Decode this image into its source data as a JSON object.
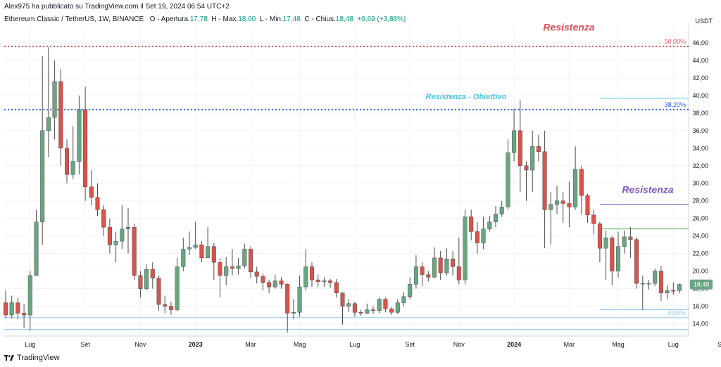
{
  "header": {
    "published_by": "Alex975 ha pubblicato su TradingView.com il Set 19, 2024 06:54 UTC+2",
    "symbol": "Ethereum Classic / TetherUS, 1W, BINANCE",
    "open_label": "O - Apertura",
    "open_value": "17,78",
    "high_label": "H - Max.",
    "high_value": "18,60",
    "low_label": "L - Min.",
    "low_value": "17,48",
    "close_label": "C - Chius.",
    "close_value": "18,48",
    "change": "+0,69 (+3,88%)"
  },
  "unit": "USDT",
  "footer": {
    "brand": "TradingView"
  },
  "colors": {
    "up": "#6aa582",
    "down": "#d9534a",
    "grid": "#f0f3fa",
    "resist_red": "#e0505b",
    "resist_teal": "#4fc3d9",
    "fib_blue": "#2962ff",
    "purple": "#7e57c2",
    "green_line": "#4caf50",
    "lightblue": "#90c8f0"
  },
  "chart_data": {
    "type": "candlestick",
    "y_ticks": [
      "14,00",
      "16,00",
      "18,00",
      "20,00",
      "22,00",
      "24,00",
      "26,00",
      "28,00",
      "30,00",
      "32,00",
      "34,00",
      "36,00",
      "38,00",
      "40,00",
      "42,00",
      "44,00",
      "46,00"
    ],
    "ylim": [
      12.6,
      48.0
    ],
    "x_ticks": [
      "Lug",
      "Set",
      "Nov",
      "2023",
      "Mar",
      "Mag",
      "Lug",
      "Set",
      "Nov",
      "2024",
      "Mar",
      "Mag",
      "Lug",
      "Set"
    ],
    "last_price": "18,48",
    "annotations": [
      {
        "text": "Resistenza",
        "color": "resist_red",
        "y": 47.4
      },
      {
        "text": "Resistenza - Obiettivo",
        "color": "resist_teal",
        "y": 39.6
      },
      {
        "text": "Resistenza",
        "color": "purple",
        "y": 28.9
      }
    ],
    "levels": [
      {
        "label": "50,00%",
        "y": 45.6,
        "style": "dotted",
        "color": "resist_red",
        "full": true
      },
      {
        "label": "38,20%",
        "y": 38.4,
        "style": "dotted",
        "color": "fib_blue",
        "full": true
      },
      {
        "label": "",
        "y": 39.7,
        "style": "solid",
        "color": "resist_teal",
        "full": false
      },
      {
        "label": "",
        "y": 27.6,
        "style": "solid",
        "color": "purple",
        "full": false
      },
      {
        "label": "",
        "y": 24.8,
        "style": "solid",
        "color": "green_line",
        "full": false
      },
      {
        "label": "",
        "y": 15.6,
        "style": "solid",
        "color": "lightblue",
        "full": false
      },
      {
        "label": "0,00%",
        "y": 14.7,
        "style": "solid",
        "color": "lightblue",
        "full": true
      },
      {
        "label": "",
        "y": 13.35,
        "style": "solid",
        "color": "lightblue",
        "full": true
      }
    ],
    "candles": [
      [
        16.4,
        15.0,
        17.8,
        14.6
      ],
      [
        15.0,
        16.4,
        17.2,
        14.6
      ],
      [
        16.4,
        15.2,
        17.0,
        14.5
      ],
      [
        15.2,
        15.0,
        16.2,
        13.5
      ],
      [
        15.0,
        19.5,
        20.0,
        13.2
      ],
      [
        19.5,
        25.6,
        27.0,
        21.0
      ],
      [
        25.6,
        36.0,
        44.5,
        23.0
      ],
      [
        36.0,
        37.5,
        45.5,
        33.0
      ],
      [
        37.5,
        41.6,
        44.0,
        35.0
      ],
      [
        41.6,
        34.0,
        43.0,
        32.0
      ],
      [
        34.0,
        31.0,
        35.0,
        30.0
      ],
      [
        31.0,
        32.5,
        36.5,
        30.5
      ],
      [
        32.5,
        38.4,
        40.0,
        31.0
      ],
      [
        38.4,
        29.6,
        41.0,
        28.0
      ],
      [
        29.6,
        28.4,
        31.5,
        27.5
      ],
      [
        28.4,
        27.0,
        30.0,
        26.3
      ],
      [
        27.0,
        25.0,
        27.5,
        24.0
      ],
      [
        25.0,
        23.0,
        26.0,
        22.0
      ],
      [
        23.0,
        23.4,
        24.5,
        21.0
      ],
      [
        23.4,
        24.8,
        27.5,
        22.5
      ],
      [
        24.8,
        25.0,
        27.2,
        22.0
      ],
      [
        25.0,
        19.5,
        25.4,
        19.0
      ],
      [
        19.5,
        18.0,
        20.0,
        17.0
      ],
      [
        18.0,
        20.2,
        20.8,
        17.8
      ],
      [
        20.2,
        19.2,
        21.0,
        18.0
      ],
      [
        19.2,
        16.2,
        19.5,
        15.5
      ],
      [
        16.2,
        16.0,
        17.2,
        15.2
      ],
      [
        16.0,
        15.6,
        16.5,
        15.0
      ],
      [
        15.6,
        20.5,
        21.5,
        15.4
      ],
      [
        20.5,
        22.5,
        23.8,
        20.0
      ],
      [
        22.5,
        22.7,
        24.5,
        21.8
      ],
      [
        22.7,
        23.0,
        25.6,
        22.5
      ],
      [
        23.0,
        21.5,
        23.4,
        21.0
      ],
      [
        21.5,
        22.8,
        25.0,
        21.5
      ],
      [
        22.8,
        21.0,
        23.2,
        19.0
      ],
      [
        21.0,
        19.5,
        21.5,
        17.0
      ],
      [
        19.5,
        20.5,
        21.6,
        18.4
      ],
      [
        20.5,
        20.3,
        22.5,
        19.5
      ],
      [
        20.3,
        20.6,
        21.5,
        19.6
      ],
      [
        20.6,
        22.5,
        23.1,
        20.3
      ],
      [
        22.5,
        19.9,
        22.8,
        19.2
      ],
      [
        19.9,
        19.4,
        20.5,
        18.6
      ],
      [
        19.4,
        18.7,
        19.7,
        17.8
      ],
      [
        18.7,
        18.2,
        19.0,
        17.5
      ],
      [
        18.2,
        18.9,
        19.6,
        18.0
      ],
      [
        18.9,
        18.5,
        19.3,
        18.0
      ],
      [
        18.5,
        15.2,
        18.6,
        13.0
      ],
      [
        15.2,
        15.3,
        16.8,
        14.5
      ],
      [
        15.3,
        18.2,
        19.5,
        14.8
      ],
      [
        18.2,
        20.5,
        22.5,
        17.8
      ],
      [
        20.5,
        19.0,
        21.0,
        18.2
      ],
      [
        19.0,
        18.8,
        19.6,
        18.2
      ],
      [
        18.8,
        18.9,
        19.3,
        18.2
      ],
      [
        18.9,
        18.7,
        19.1,
        18.1
      ],
      [
        18.7,
        17.5,
        19.1,
        17.0
      ],
      [
        17.5,
        16.0,
        17.6,
        13.9
      ],
      [
        16.0,
        16.3,
        16.8,
        15.3
      ],
      [
        16.3,
        15.3,
        16.5,
        14.8
      ],
      [
        15.3,
        15.2,
        15.6,
        14.9
      ],
      [
        15.2,
        15.6,
        16.3,
        15.1
      ],
      [
        15.6,
        15.5,
        16.0,
        15.1
      ],
      [
        15.5,
        16.8,
        17.0,
        15.2
      ],
      [
        16.8,
        15.7,
        17.0,
        15.3
      ],
      [
        15.7,
        15.3,
        15.9,
        15.0
      ],
      [
        15.3,
        16.4,
        16.8,
        15.1
      ],
      [
        16.4,
        17.1,
        17.6,
        16.0
      ],
      [
        17.1,
        18.5,
        19.3,
        16.8
      ],
      [
        18.5,
        20.5,
        21.8,
        18.0
      ],
      [
        20.5,
        19.6,
        21.0,
        18.3
      ],
      [
        19.6,
        19.3,
        20.0,
        18.8
      ],
      [
        19.3,
        21.5,
        22.7,
        19.2
      ],
      [
        21.5,
        19.8,
        22.3,
        19.0
      ],
      [
        19.8,
        21.4,
        22.6,
        19.5
      ],
      [
        21.4,
        20.5,
        22.3,
        19.5
      ],
      [
        20.5,
        19.0,
        23.8,
        18.5
      ],
      [
        19.0,
        26.2,
        27.0,
        18.5
      ],
      [
        26.2,
        24.5,
        27.0,
        23.5
      ],
      [
        24.5,
        23.2,
        25.6,
        22.0
      ],
      [
        23.2,
        24.8,
        26.2,
        22.5
      ],
      [
        24.8,
        25.6,
        26.3,
        24.5
      ],
      [
        25.6,
        26.5,
        27.4,
        25.0
      ],
      [
        26.5,
        27.3,
        28.0,
        26.2
      ],
      [
        27.3,
        33.5,
        35.0,
        27.0
      ],
      [
        33.5,
        36.0,
        38.5,
        32.5
      ],
      [
        36.0,
        32.0,
        39.5,
        29.0
      ],
      [
        32.0,
        31.5,
        32.5,
        28.0
      ],
      [
        31.5,
        34.2,
        36.0,
        29.0
      ],
      [
        34.2,
        33.6,
        35.5,
        32.5
      ],
      [
        33.6,
        27.0,
        36.0,
        22.6
      ],
      [
        27.0,
        27.6,
        29.0,
        23.0
      ],
      [
        27.6,
        28.0,
        29.7,
        26.5
      ],
      [
        28.0,
        27.7,
        29.0,
        25.5
      ],
      [
        27.7,
        27.3,
        30.2,
        25.0
      ],
      [
        27.3,
        31.6,
        34.2,
        27.0
      ],
      [
        31.6,
        28.6,
        32.0,
        26.5
      ],
      [
        28.6,
        26.4,
        28.8,
        25.5
      ],
      [
        26.4,
        25.4,
        27.0,
        24.2
      ],
      [
        25.4,
        22.6,
        25.6,
        21.0
      ],
      [
        22.6,
        23.8,
        24.6,
        19.0
      ],
      [
        23.8,
        20.0,
        24.0,
        18.4
      ],
      [
        20.0,
        22.8,
        24.5,
        19.3
      ],
      [
        22.8,
        23.9,
        24.6,
        22.0
      ],
      [
        23.9,
        23.6,
        25.0,
        21.5
      ],
      [
        23.6,
        18.6,
        23.9,
        18.0
      ],
      [
        18.6,
        18.6,
        19.5,
        15.6
      ],
      [
        18.6,
        18.6,
        19.0,
        17.9
      ],
      [
        18.6,
        20.0,
        20.3,
        18.3
      ],
      [
        20.0,
        17.5,
        20.6,
        16.6
      ],
      [
        17.5,
        17.8,
        18.4,
        16.8
      ],
      [
        17.8,
        17.7,
        18.7,
        17.3
      ],
      [
        17.78,
        18.48,
        18.6,
        17.48
      ]
    ]
  }
}
